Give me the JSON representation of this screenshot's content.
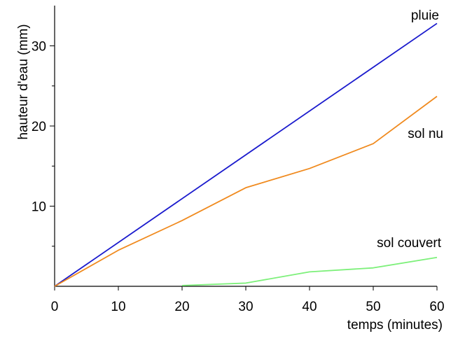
{
  "chart_data": {
    "type": "line",
    "xlabel": "temps (minutes)",
    "ylabel": "hauteur d'eau (mm)",
    "xlim": [
      0,
      60
    ],
    "ylim": [
      0,
      35
    ],
    "x_ticks": [
      0,
      10,
      20,
      30,
      40,
      50,
      60
    ],
    "x_tick_labels": [
      "0",
      "10",
      "20",
      "30",
      "40",
      "50",
      "60"
    ],
    "y_major_ticks": [
      10,
      20,
      30
    ],
    "y_tick_labels": [
      "10",
      "20",
      "30"
    ],
    "y_minor_ticks": [
      5,
      15,
      25
    ],
    "grid": false,
    "legend": "inline labels",
    "series": [
      {
        "name": "pluie",
        "color": "#1a1acd",
        "x": [
          0,
          60
        ],
        "y": [
          0,
          32.8
        ]
      },
      {
        "name": "sol nu",
        "color": "#f08a1e",
        "x": [
          0,
          10,
          20,
          30,
          40,
          50,
          60
        ],
        "y": [
          0,
          4.5,
          8.2,
          12.3,
          14.7,
          17.8,
          23.7
        ]
      },
      {
        "name": "sol couvert",
        "color": "#7df07a",
        "x": [
          20,
          30,
          40,
          50,
          60
        ],
        "y": [
          0.1,
          0.4,
          1.8,
          2.3,
          3.6
        ]
      }
    ]
  }
}
